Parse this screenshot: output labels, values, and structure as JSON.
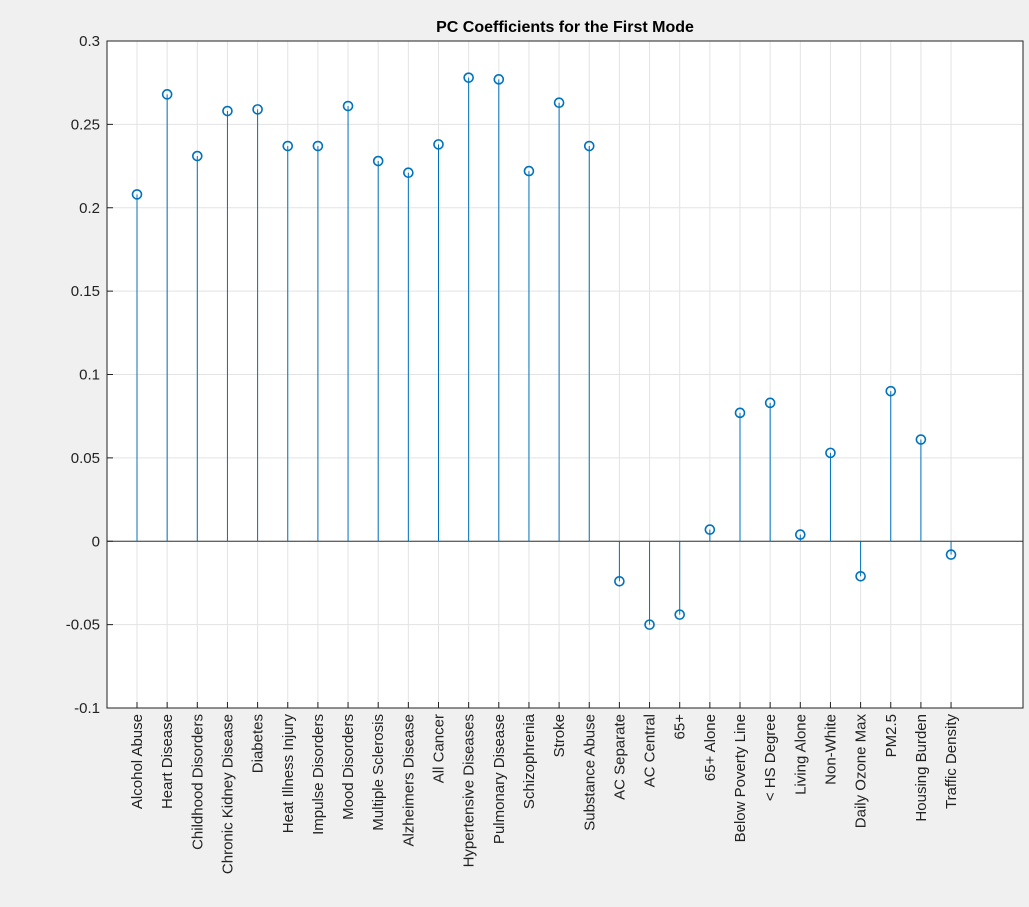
{
  "chart_data": {
    "type": "stem",
    "title": "PC Coefficients for the First Mode",
    "xlabel": "",
    "ylabel": "",
    "ylim": [
      -0.1,
      0.3
    ],
    "yticks": [
      "-0.1",
      "-0.05",
      "0",
      "0.05",
      "0.1",
      "0.15",
      "0.2",
      "0.25",
      "0.3"
    ],
    "grid": true,
    "color": "#0072BD",
    "categories": [
      "Alcohol Abuse",
      "Heart Disease",
      "Childhood Disorders",
      "Chronic Kidney Disease",
      "Diabetes",
      "Heat Illness Injury",
      "Impulse Disorders",
      "Mood Disorders",
      "Multiple Sclerosis",
      "Alzheimers Disease",
      "All Cancer",
      "Hypertensive Diseases",
      "Pulmonary Disease",
      "Schizophrenia",
      "Stroke",
      "Substance Abuse",
      "AC Separate",
      "AC Central",
      "65+",
      "65+ Alone",
      "Below Poverty Line",
      "< HS Degree",
      "Living Alone",
      "Non-White",
      "Daily Ozone Max",
      "PM2.5",
      "Housing Burden",
      "Traffic Density"
    ],
    "values": [
      0.208,
      0.268,
      0.231,
      0.258,
      0.259,
      0.237,
      0.237,
      0.261,
      0.228,
      0.221,
      0.238,
      0.278,
      0.277,
      0.222,
      0.263,
      0.237,
      -0.024,
      -0.05,
      -0.044,
      0.007,
      0.077,
      0.083,
      0.004,
      0.053,
      -0.021,
      0.09,
      0.061,
      -0.008
    ]
  }
}
